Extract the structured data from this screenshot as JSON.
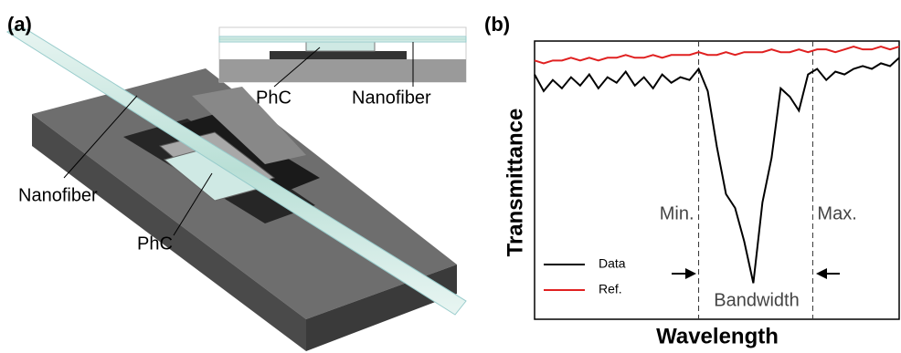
{
  "panel_a": {
    "label": "(a)",
    "labels": [
      "Nanofiber",
      "PhC"
    ],
    "inset_labels": [
      "PhC",
      "Nanofiber"
    ]
  },
  "chart_data": {
    "type": "line",
    "label": "(b)",
    "xlabel": "Wavelength",
    "ylabel": "Transmittance",
    "x": [
      0,
      2.5,
      5,
      7.5,
      10,
      12.5,
      15,
      17.5,
      20,
      22.5,
      25,
      27.5,
      30,
      32.5,
      35,
      37.5,
      40,
      42.5,
      45,
      47.5,
      50,
      52.5,
      55,
      57.5,
      60,
      62.5,
      65,
      67.5,
      70,
      72.5,
      75,
      77.5,
      80,
      82.5,
      85,
      87.5,
      90,
      92.5,
      95,
      97.5,
      100
    ],
    "series": [
      {
        "name": "Data",
        "color": "#000000",
        "values": [
          0.88,
          0.82,
          0.86,
          0.83,
          0.87,
          0.84,
          0.88,
          0.83,
          0.87,
          0.85,
          0.89,
          0.84,
          0.87,
          0.83,
          0.88,
          0.85,
          0.87,
          0.86,
          0.9,
          0.82,
          0.62,
          0.45,
          0.4,
          0.28,
          0.13,
          0.42,
          0.58,
          0.83,
          0.8,
          0.75,
          0.88,
          0.9,
          0.86,
          0.89,
          0.88,
          0.9,
          0.91,
          0.9,
          0.92,
          0.91,
          0.94
        ]
      },
      {
        "name": "Ref.",
        "color": "#e02020",
        "values": [
          0.93,
          0.92,
          0.93,
          0.93,
          0.94,
          0.93,
          0.94,
          0.93,
          0.94,
          0.94,
          0.95,
          0.94,
          0.94,
          0.95,
          0.94,
          0.95,
          0.95,
          0.95,
          0.96,
          0.95,
          0.95,
          0.96,
          0.95,
          0.96,
          0.96,
          0.96,
          0.97,
          0.96,
          0.96,
          0.97,
          0.96,
          0.97,
          0.97,
          0.96,
          0.97,
          0.98,
          0.97,
          0.97,
          0.98,
          0.97,
          0.98
        ]
      }
    ],
    "xlim": [
      0,
      100
    ],
    "ylim": [
      0,
      1
    ],
    "annotations": [
      {
        "text": "Min.",
        "x": 45
      },
      {
        "text": "Max.",
        "x": 76.3
      }
    ],
    "bandwidth_label": "Bandwidth",
    "legend": "lower left"
  }
}
